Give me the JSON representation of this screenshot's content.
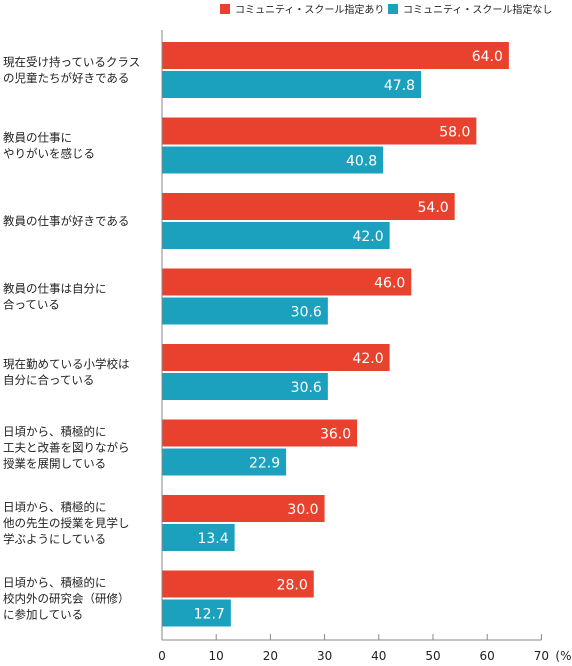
{
  "chart_data": {
    "type": "bar",
    "orientation": "horizontal",
    "categories": [
      [
        "現在受け持っているクラス",
        "の児童たちが好きである"
      ],
      [
        "教員の仕事に",
        "やりがいを感じる"
      ],
      [
        "教員の仕事が好きである"
      ],
      [
        "教員の仕事は自分に",
        "合っている"
      ],
      [
        "現在勤めている小学校は",
        "自分に合っている"
      ],
      [
        "日頃から、積極的に",
        "工夫と改善を図りながら",
        "授業を展開している"
      ],
      [
        "日頃から、積極的に",
        "他の先生の授業を見学し",
        "学ぶようにしている"
      ],
      [
        "日頃から、積極的に",
        "校内外の研究会（研修）",
        "に参加している"
      ]
    ],
    "series": [
      {
        "name": "コミュニティ・スクール指定あり",
        "color": "#e8422f",
        "values": [
          64.0,
          58.0,
          54.0,
          46.0,
          42.0,
          36.0,
          30.0,
          28.0
        ],
        "labels": [
          "64.0",
          "58.0",
          "54.0",
          "46.0",
          "42.0",
          "36.0",
          "30.0",
          "28.0"
        ]
      },
      {
        "name": "コミュニティ・スクール指定なし",
        "color": "#1ba1bd",
        "values": [
          47.8,
          40.8,
          42.0,
          30.6,
          30.6,
          22.9,
          13.4,
          12.7
        ],
        "labels": [
          "47.8",
          "40.8",
          "42.0",
          "30.6",
          "30.6",
          "22.9",
          "13.4",
          "12.7"
        ]
      }
    ],
    "xlim": [
      0,
      70
    ],
    "xticks": [
      "0",
      "10",
      "20",
      "30",
      "40",
      "50",
      "60",
      "70"
    ],
    "unit_label": "(%)",
    "legend_position": "top-right",
    "grid": false
  }
}
